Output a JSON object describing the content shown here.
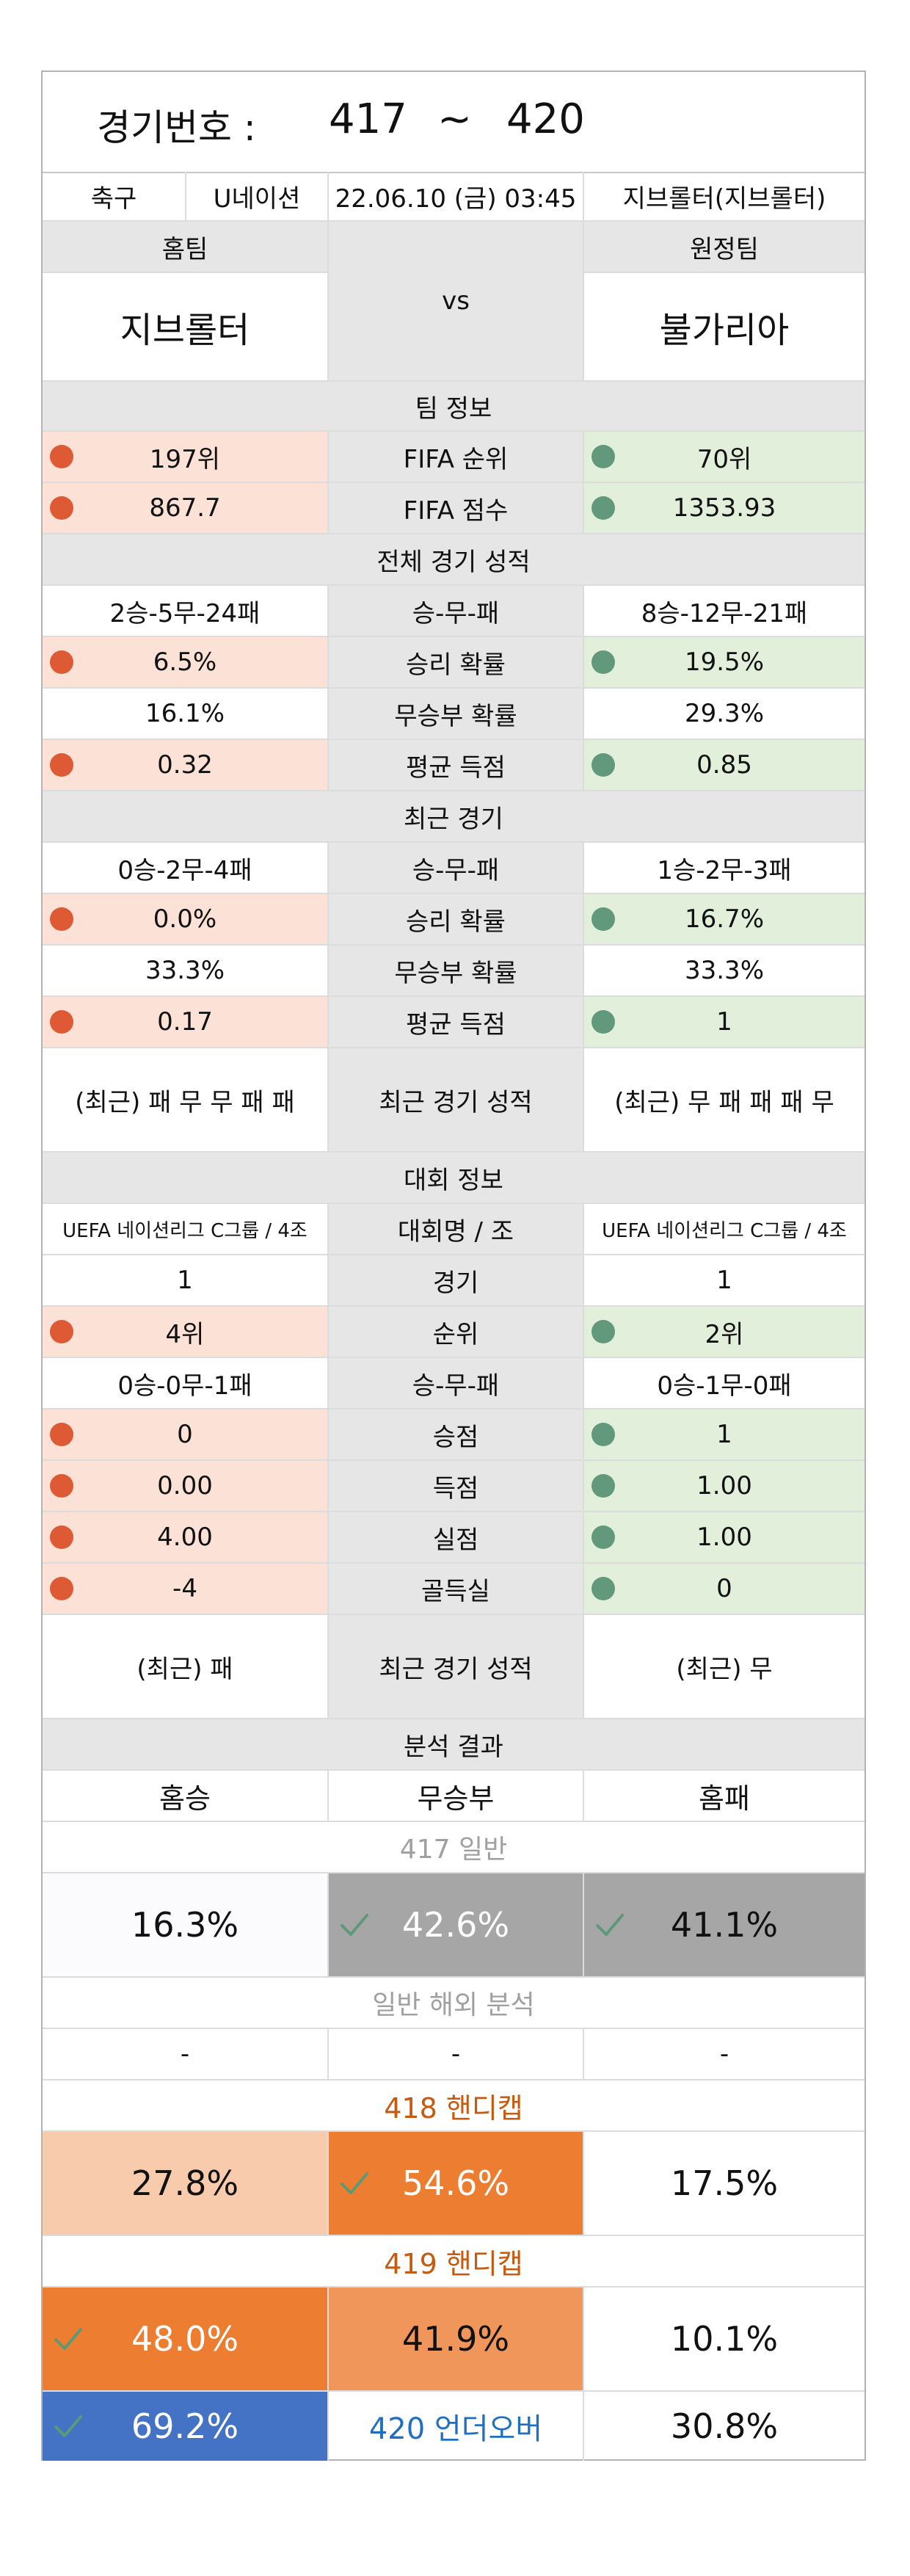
{
  "header": {
    "label": "경기번호 :",
    "from": "417",
    "tilde": "~",
    "to": "420"
  },
  "info": {
    "sport": "축구",
    "league": "U네이션",
    "datetime": "22.06.10 (금) 03:45",
    "venue": "지브롤터(지브롤터)"
  },
  "teams": {
    "home_label": "홈팀",
    "away_label": "원정팀",
    "vs": "vs",
    "home": "지브롤터",
    "away": "불가리아"
  },
  "team_info": {
    "title": "팀 정보",
    "rows": [
      {
        "home": "197위",
        "label": "FIFA 순위",
        "away": "70위"
      },
      {
        "home": "867.7",
        "label": "FIFA 점수",
        "away": "1353.93"
      }
    ]
  },
  "overall": {
    "title": "전체 경기 성적",
    "rows": [
      {
        "home": "2승-5무-24패",
        "label": "승-무-패",
        "away": "8승-12무-21패"
      },
      {
        "home": "6.5%",
        "label": "승리 확률",
        "away": "19.5%"
      },
      {
        "home": "16.1%",
        "label": "무승부 확률",
        "away": "29.3%"
      },
      {
        "home": "0.32",
        "label": "평균 득점",
        "away": "0.85"
      }
    ]
  },
  "recent": {
    "title": "최근 경기",
    "rows": [
      {
        "home": "0승-2무-4패",
        "label": "승-무-패",
        "away": "1승-2무-3패"
      },
      {
        "home": "0.0%",
        "label": "승리 확률",
        "away": "16.7%"
      },
      {
        "home": "33.3%",
        "label": "무승부 확률",
        "away": "33.3%"
      },
      {
        "home": "0.17",
        "label": "평균 득점",
        "away": "1"
      },
      {
        "home": "(최근) 패 무 무 패 패",
        "label": "최근 경기 성적",
        "away": "(최근) 무 패 패 패 무"
      }
    ]
  },
  "tournament": {
    "title": "대회 정보",
    "rows": [
      {
        "home": "UEFA 네이션리그 C그룹 / 4조",
        "label": "대회명 / 조",
        "away": "UEFA 네이션리그 C그룹 / 4조"
      },
      {
        "home": "1",
        "label": "경기",
        "away": "1"
      },
      {
        "home": "4위",
        "label": "순위",
        "away": "2위"
      },
      {
        "home": "0승-0무-1패",
        "label": "승-무-패",
        "away": "0승-1무-0패"
      },
      {
        "home": "0",
        "label": "승점",
        "away": "1"
      },
      {
        "home": "0.00",
        "label": "득점",
        "away": "1.00"
      },
      {
        "home": "4.00",
        "label": "실점",
        "away": "1.00"
      },
      {
        "home": "-4",
        "label": "골득실",
        "away": "0"
      },
      {
        "home": "(최근) 패",
        "label": "최근 경기 성적",
        "away": "(최근) 무"
      }
    ]
  },
  "analysis": {
    "title": "분석 결과",
    "cols": [
      "홈승",
      "무승부",
      "홈패"
    ],
    "g417": {
      "title": "417 일반",
      "values": [
        "16.3%",
        "42.6%",
        "41.1%"
      ]
    },
    "overseas": {
      "title": "일반 해외 분석",
      "values": [
        "-",
        "-",
        "-"
      ]
    },
    "g418": {
      "title": "418 핸디캡",
      "values": [
        "27.8%",
        "54.6%",
        "17.5%"
      ]
    },
    "g419": {
      "title": "419 핸디캡",
      "values": [
        "48.0%",
        "41.9%",
        "10.1%"
      ]
    },
    "g420": {
      "under": "69.2%",
      "label": "420 언더오버",
      "over": "30.8%"
    }
  },
  "colors": {
    "red_dot": "#dd5a35",
    "green_dot": "#62987c",
    "pink": "#fbe1d6",
    "light_green": "#e2efda",
    "gray": "#e6e6e6",
    "dark_gray": "#a6a6a6",
    "orange": "#ed7d31",
    "light_orange": "#f0965a",
    "blue": "#4472c4",
    "title_orange": "#c55a11",
    "title_gray": "#a0a0a0",
    "label_blue": "#1f6fc2"
  }
}
